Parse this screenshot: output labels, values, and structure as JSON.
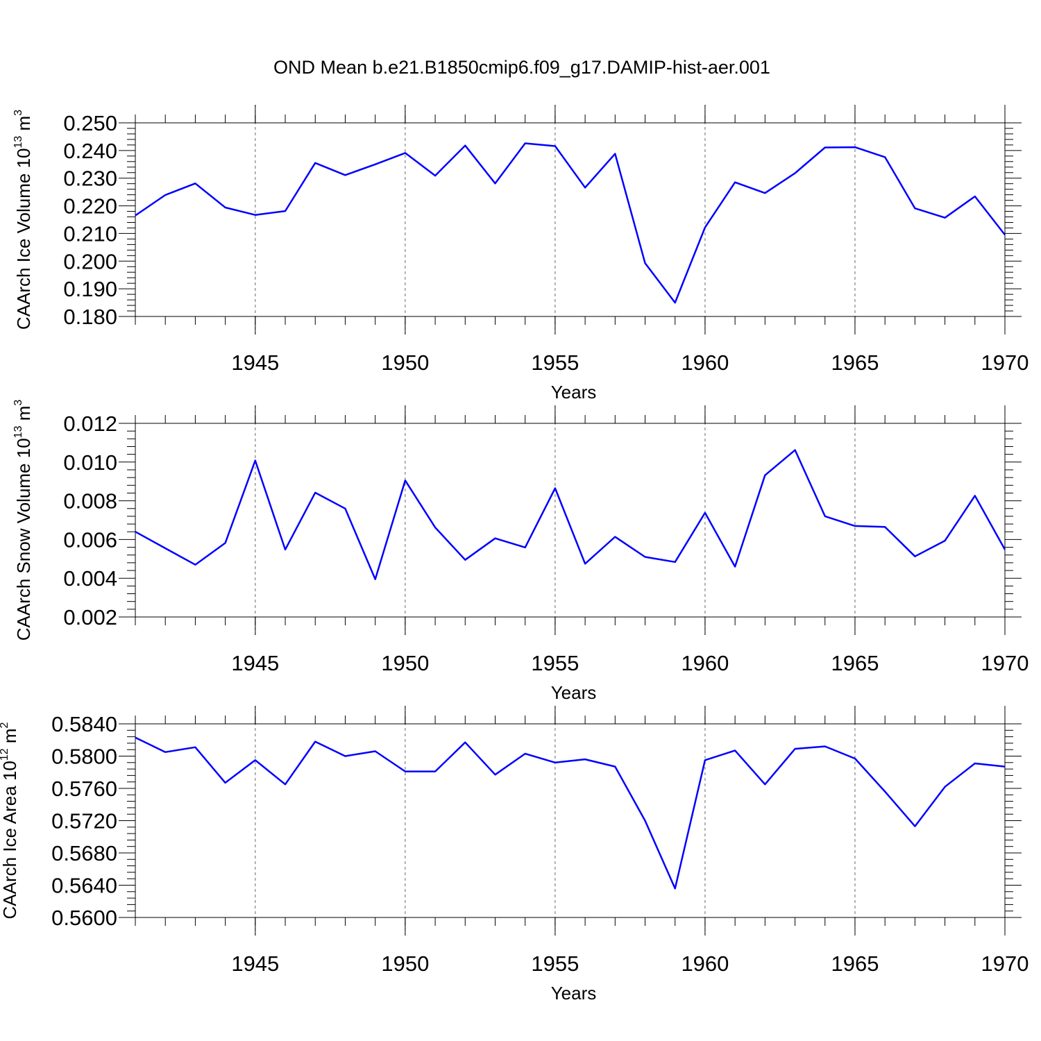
{
  "title": "OND Mean b.e21.B1850cmip6.f09_g17.DAMIP-hist-aer.001",
  "colors": {
    "line": "#0000ff",
    "axis": "#000000",
    "grid": "#666666"
  },
  "chart_data": [
    {
      "type": "line",
      "title": "OND Mean b.e21.B1850cmip6.f09_g17.DAMIP-hist-aer.001",
      "xlabel": "Years",
      "ylabel": "CAArch Ice Volume 10",
      "ylabel_exp": "13",
      "ylabel_unit": " m",
      "ylabel_unit_exp": "3",
      "xlim": [
        1941,
        1970
      ],
      "ylim": [
        0.18,
        0.25
      ],
      "xticks": [
        1945,
        1950,
        1955,
        1960,
        1965,
        1970
      ],
      "yticks": [
        0.18,
        0.19,
        0.2,
        0.21,
        0.22,
        0.23,
        0.24,
        0.25
      ],
      "ytick_labels": [
        "0.180",
        "0.190",
        "0.200",
        "0.210",
        "0.220",
        "0.230",
        "0.240",
        "0.250"
      ],
      "x": [
        1941,
        1942,
        1943,
        1944,
        1945,
        1946,
        1947,
        1948,
        1949,
        1950,
        1951,
        1952,
        1953,
        1954,
        1955,
        1956,
        1957,
        1958,
        1959,
        1960,
        1961,
        1962,
        1963,
        1964,
        1965,
        1966,
        1967,
        1968,
        1969,
        1970
      ],
      "values": [
        0.2165,
        0.2239,
        0.2281,
        0.2194,
        0.2167,
        0.2181,
        0.2355,
        0.2311,
        0.235,
        0.2391,
        0.2309,
        0.2418,
        0.2281,
        0.2426,
        0.2416,
        0.2266,
        0.2388,
        0.1993,
        0.185,
        0.2122,
        0.2285,
        0.2246,
        0.2318,
        0.2411,
        0.2412,
        0.2376,
        0.2191,
        0.2157,
        0.2234,
        0.2095
      ],
      "grid": "vertical dashed at major ticks"
    },
    {
      "type": "line",
      "xlabel": "Years",
      "ylabel": "CAArch Snow Volume 10",
      "ylabel_exp": "13",
      "ylabel_unit": " m",
      "ylabel_unit_exp": "3",
      "xlim": [
        1941,
        1970
      ],
      "ylim": [
        0.002,
        0.012
      ],
      "xticks": [
        1945,
        1950,
        1955,
        1960,
        1965,
        1970
      ],
      "yticks": [
        0.002,
        0.004,
        0.006,
        0.008,
        0.01,
        0.012
      ],
      "ytick_labels": [
        "0.002",
        "0.004",
        "0.006",
        "0.008",
        "0.010",
        "0.012"
      ],
      "x": [
        1941,
        1942,
        1943,
        1944,
        1945,
        1946,
        1947,
        1948,
        1949,
        1950,
        1951,
        1952,
        1953,
        1954,
        1955,
        1956,
        1957,
        1958,
        1959,
        1960,
        1961,
        1962,
        1963,
        1964,
        1965,
        1966,
        1967,
        1968,
        1969,
        1970
      ],
      "values": [
        0.0064,
        0.00555,
        0.0047,
        0.00582,
        0.01008,
        0.00548,
        0.00842,
        0.0076,
        0.00395,
        0.00905,
        0.00662,
        0.00495,
        0.00606,
        0.00559,
        0.00865,
        0.00475,
        0.00614,
        0.0051,
        0.00484,
        0.00738,
        0.0046,
        0.00932,
        0.01062,
        0.0072,
        0.0067,
        0.00665,
        0.00513,
        0.00594,
        0.00826,
        0.00548
      ],
      "grid": "vertical dashed at major ticks"
    },
    {
      "type": "line",
      "xlabel": "Years",
      "ylabel": "CAArch Ice Area 10",
      "ylabel_exp": "12",
      "ylabel_unit": " m",
      "ylabel_unit_exp": "2",
      "xlim": [
        1941,
        1970
      ],
      "ylim": [
        0.56,
        0.584
      ],
      "xticks": [
        1945,
        1950,
        1955,
        1960,
        1965,
        1970
      ],
      "yticks": [
        0.56,
        0.564,
        0.568,
        0.572,
        0.576,
        0.58,
        0.584
      ],
      "ytick_labels": [
        "0.5600",
        "0.5640",
        "0.5680",
        "0.5720",
        "0.5760",
        "0.5800",
        "0.5840"
      ],
      "x": [
        1941,
        1942,
        1943,
        1944,
        1945,
        1946,
        1947,
        1948,
        1949,
        1950,
        1951,
        1952,
        1953,
        1954,
        1955,
        1956,
        1957,
        1958,
        1959,
        1960,
        1961,
        1962,
        1963,
        1964,
        1965,
        1966,
        1967,
        1968,
        1969,
        1970
      ],
      "values": [
        0.5823,
        0.5805,
        0.5811,
        0.5767,
        0.5795,
        0.5765,
        0.5818,
        0.58,
        0.5806,
        0.5781,
        0.5781,
        0.5817,
        0.5777,
        0.5803,
        0.5792,
        0.5796,
        0.5787,
        0.572,
        0.5636,
        0.5795,
        0.5807,
        0.5765,
        0.5809,
        0.5812,
        0.5797,
        0.5756,
        0.5713,
        0.5762,
        0.5791,
        0.5787
      ],
      "grid": "vertical dashed at major ticks"
    }
  ]
}
